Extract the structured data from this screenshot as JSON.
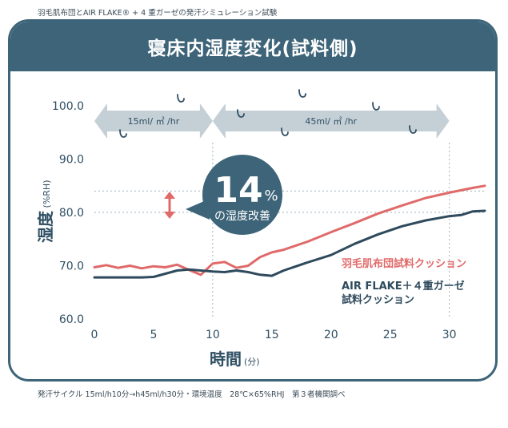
{
  "caption_top": "羽毛肌布団とAIR FLAKE® + 4 重ガーゼの発汗シミュレーション試験",
  "caption_bottom": "発汗サイクル 15ml/h10分→h45ml/h30分・環境温度　28℃×65%RHJ　第３者機関調べ",
  "card": {
    "title": "寝床内湿度変化(試料側)"
  },
  "colors": {
    "header": "#3d6478",
    "series_down": "#e06a6a",
    "series_air": "#2e4a5c",
    "arrow": "#c5d0d6",
    "badge": "#3d6478",
    "indicator": "#e06a6a"
  },
  "chart_data": {
    "type": "line",
    "title": "寝床内湿度変化(試料側)",
    "xlabel": "時間",
    "xlabel_unit": "(分)",
    "ylabel": "湿度",
    "ylabel_unit": "(%RH)",
    "xlim": [
      0,
      33
    ],
    "ylim": [
      60,
      100
    ],
    "xticks": [
      0,
      5,
      10,
      15,
      20,
      25,
      30
    ],
    "yticks": [
      "60.0",
      "70.0",
      "80.0",
      "90.0",
      "100.0"
    ],
    "series": [
      {
        "name": "羽毛肌布団試料クッション",
        "x": [
          0,
          1,
          2,
          3,
          4,
          5,
          6,
          7,
          8,
          9,
          10,
          11,
          12,
          13,
          14,
          15,
          16,
          18,
          20,
          22,
          24,
          26,
          28,
          30,
          32,
          33
        ],
        "y": [
          69.7,
          70.1,
          69.6,
          70.0,
          69.5,
          69.9,
          69.7,
          70.2,
          69.2,
          68.3,
          70.4,
          70.7,
          69.6,
          70.0,
          71.6,
          72.5,
          73.0,
          74.5,
          76.3,
          78.0,
          79.8,
          81.3,
          82.7,
          83.7,
          84.6,
          85.0
        ]
      },
      {
        "name": "AIR FLAKE＋４重ガーゼ試料クッション",
        "x": [
          0,
          2,
          4,
          5,
          6,
          7,
          8,
          9,
          10,
          11,
          12,
          13,
          14,
          15,
          16,
          18,
          20,
          22,
          24,
          26,
          28,
          30,
          31,
          32,
          33
        ],
        "y": [
          67.8,
          67.8,
          67.8,
          67.9,
          68.5,
          69.1,
          69.3,
          69.1,
          68.9,
          68.8,
          69.1,
          68.8,
          68.3,
          68.1,
          69.1,
          70.6,
          72.0,
          74.1,
          75.9,
          77.4,
          78.5,
          79.3,
          79.5,
          80.2,
          80.3
        ]
      }
    ],
    "phases": [
      {
        "label": "15ml/ ㎡ /hr",
        "from": 0,
        "to": 10
      },
      {
        "label": "45ml/ ㎡ /hr",
        "from": 10,
        "to": 30
      }
    ],
    "reference_lines": {
      "x": [
        10,
        30
      ],
      "y": [
        80.0,
        84.0
      ]
    },
    "annotation": {
      "value": "14",
      "unit": "%",
      "text": "の湿度改善"
    },
    "grid": false,
    "legend": "right"
  }
}
